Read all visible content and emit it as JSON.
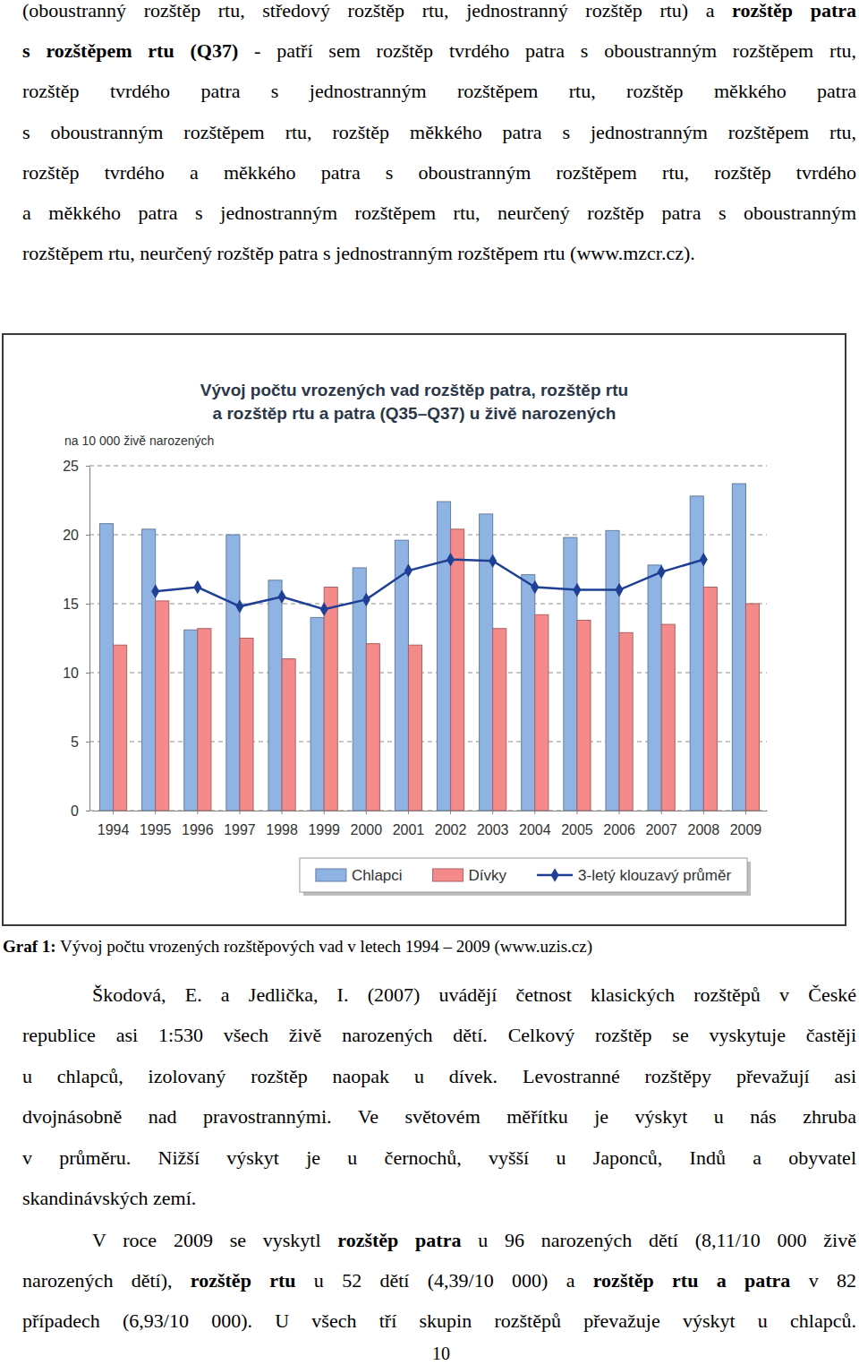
{
  "paragraphs": [
    {
      "lines": [
        [
          {
            "text": "(oboustranný rozštěp rtu, středový rozštěp rtu, jednostranný rozštěp rtu) a ",
            "bold": false
          },
          {
            "text": "rozštěp patra",
            "bold": true
          }
        ],
        [
          {
            "text": "s rozštěpem rtu (Q37)",
            "bold": true
          },
          {
            "text": " - patří sem rozštěp tvrdého patra s oboustranným rozštěpem rtu,",
            "bold": false
          }
        ],
        [
          {
            "text": "rozštěp tvrdého patra s jednostranným rozštěpem rtu, rozštěp měkkého patra",
            "bold": false
          }
        ],
        [
          {
            "text": "s oboustranným rozštěpem rtu, rozštěp měkkého patra s jednostranným rozštěpem rtu,",
            "bold": false
          }
        ],
        [
          {
            "text": "rozštěp tvrdého a měkkého patra s oboustranným rozštěpem rtu, rozštěp tvrdého",
            "bold": false
          }
        ],
        [
          {
            "text": "a měkkého patra s jednostranným rozštěpem rtu, neurčený rozštěp patra s oboustranným",
            "bold": false
          }
        ],
        [
          {
            "text": "rozštěpem rtu, neurčený rozštěp patra s jednostranným rozštěpem rtu (www.mzcr.cz).",
            "bold": false
          }
        ]
      ]
    },
    {
      "lines": [
        [
          {
            "text": "Škodová, E. a Jedlička, I. (2007) uvádějí četnost klasických rozštěpů v České",
            "bold": false
          }
        ],
        [
          {
            "text": "republice asi 1:530 všech živě narozených dětí. Celkový rozštěp se vyskytuje častěji",
            "bold": false
          }
        ],
        [
          {
            "text": "u chlapců, izolovaný rozštěp naopak u dívek. Levostranné rozštěpy převažují asi",
            "bold": false
          }
        ],
        [
          {
            "text": "dvojnásobně nad pravostrannými. Ve světovém měřítku je výskyt u nás zhruba",
            "bold": false
          }
        ],
        [
          {
            "text": "v průměru. Nižší výskyt je u černochů, vyšší u Japonců, Indů a obyvatel",
            "bold": false
          }
        ],
        [
          {
            "text": "skandinávských zemí.",
            "bold": false
          }
        ]
      ]
    },
    {
      "lines": [
        [
          {
            "text": "V roce 2009 se vyskytl ",
            "bold": false
          },
          {
            "text": "rozštěp patra",
            "bold": true
          },
          {
            "text": " u 96 narozených dětí (8,11/10 000 živě",
            "bold": false
          }
        ],
        [
          {
            "text": "narozených dětí), ",
            "bold": false
          },
          {
            "text": "rozštěp rtu",
            "bold": true
          },
          {
            "text": " u 52 dětí (4,39/10 000) a ",
            "bold": false
          },
          {
            "text": "rozštěp rtu a patra",
            "bold": true
          },
          {
            "text": " v 82",
            "bold": false
          }
        ],
        [
          {
            "text": "případech (6,93/10 000). U všech tří skupin rozštěpů převažuje výskyt u chlapců.",
            "bold": false
          }
        ]
      ]
    }
  ],
  "caption": [
    {
      "text": "Graf 1:",
      "bold": true
    },
    {
      "text": " Vývoj počtu vrozených rozštěpových vad v letech 1994 – 2009 (www.uzis.cz)",
      "bold": false
    }
  ],
  "page_number": "10",
  "chart_data": {
    "type": "bar",
    "title": [
      "Vývoj počtu vrozených vad rozštěp patra, rozštěp rtu",
      "a rozštěp rtu a patra (Q35–Q37) u živě narozených"
    ],
    "y_label": "na 10 000 živě narozených",
    "categories": [
      "1994",
      "1995",
      "1996",
      "1997",
      "1998",
      "1999",
      "2000",
      "2001",
      "2002",
      "2003",
      "2004",
      "2005",
      "2006",
      "2007",
      "2008",
      "2009"
    ],
    "series": [
      {
        "name": "Chlapci",
        "color": "#8fb4e3",
        "values": [
          20.8,
          20.4,
          13.1,
          20.0,
          16.7,
          14.0,
          17.6,
          19.6,
          22.4,
          21.5,
          17.1,
          19.8,
          20.3,
          17.8,
          22.8,
          23.7
        ]
      },
      {
        "name": "Dívky",
        "color": "#f48a8a",
        "values": [
          12.0,
          15.2,
          13.2,
          12.5,
          11.0,
          16.2,
          12.1,
          12.0,
          20.4,
          13.2,
          14.2,
          13.8,
          12.9,
          13.5,
          16.2,
          15.0
        ]
      },
      {
        "name": "3-letý klouzavý průměr",
        "type": "line",
        "color": "#1f3f94",
        "marker": "diamond",
        "values": [
          null,
          15.9,
          16.2,
          14.8,
          15.5,
          14.6,
          15.3,
          17.4,
          18.2,
          18.1,
          16.2,
          16.0,
          16.0,
          17.3,
          18.2,
          null
        ]
      }
    ],
    "ylim": [
      0,
      25
    ],
    "yticks": [
      0,
      5,
      10,
      15,
      20,
      25
    ],
    "grid": true,
    "legend": "bottom"
  }
}
